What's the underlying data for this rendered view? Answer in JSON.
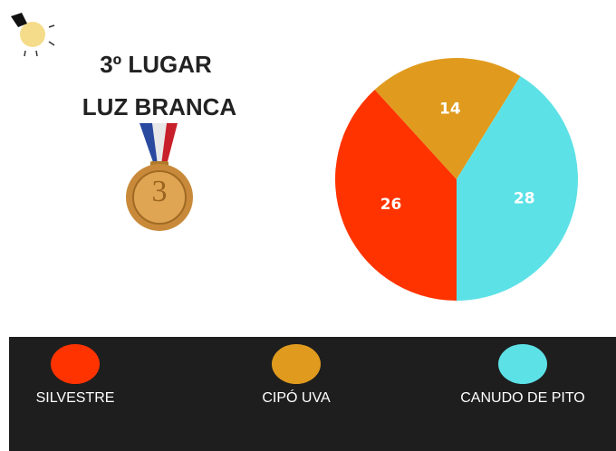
{
  "header": {
    "place": "3º LUGAR",
    "name": "LUZ BRANCA"
  },
  "medal": {
    "label": "3"
  },
  "chart_data": {
    "type": "pie",
    "categories": [
      "SILVESTRE",
      "CIPÓ UVA",
      "CANUDO DE PITO"
    ],
    "values": [
      26,
      14,
      28
    ],
    "colors": [
      "#ff3300",
      "#e09b1e",
      "#5ce1e6"
    ]
  }
}
